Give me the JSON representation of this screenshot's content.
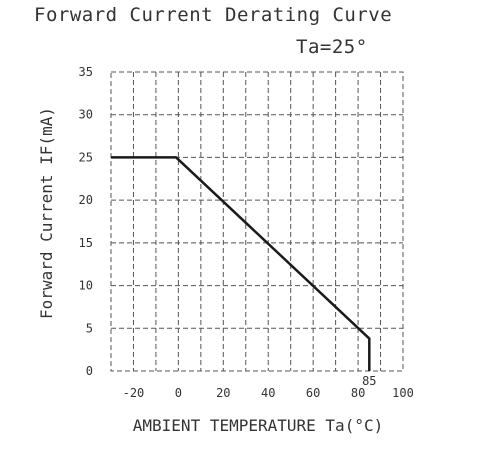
{
  "chart_data": {
    "type": "line",
    "title": "Forward Current Derating Curve",
    "subtitle": "Ta=25°",
    "xlabel": "AMBIENT TEMPERATURE Ta(°C)",
    "ylabel": "Forward Current IF(mA)",
    "xlim": [
      -30,
      100
    ],
    "ylim": [
      0,
      35
    ],
    "x_ticks": [
      -20,
      0,
      20,
      40,
      60,
      80,
      100
    ],
    "x_tick_labels": [
      "-20",
      "0",
      "20",
      "40",
      "60",
      "80",
      "100"
    ],
    "y_ticks": [
      0,
      5,
      10,
      15,
      20,
      25,
      30,
      35
    ],
    "y_tick_labels": [
      "0",
      "5",
      "10",
      "15",
      "20",
      "25",
      "30",
      "35"
    ],
    "annotations": [
      {
        "text": "85",
        "x": 85
      }
    ],
    "grid": true,
    "series": [
      {
        "x": [
          -30,
          -1,
          85,
          85
        ],
        "y": [
          25,
          25,
          3.8,
          0
        ]
      }
    ],
    "colors": {
      "line": "#1a1a1a",
      "grid": "#555555"
    }
  }
}
